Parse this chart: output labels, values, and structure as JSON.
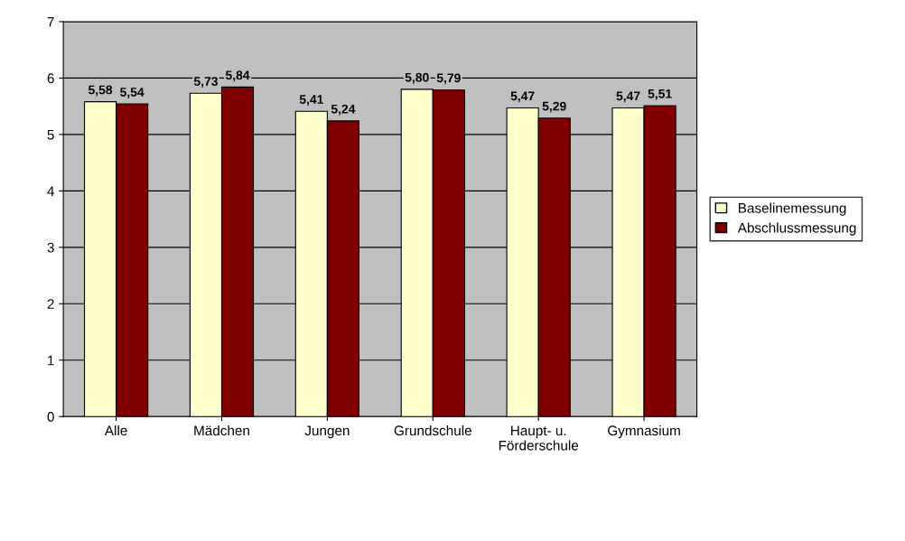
{
  "chart_data": {
    "type": "bar",
    "categories": [
      "Alle",
      "Mädchen",
      "Jungen",
      "Grundschule",
      "Haupt- u.\nFörderschule",
      "Gymnasium"
    ],
    "series": [
      {
        "name": "Baselinemessung",
        "color": "#ffffcc",
        "values": [
          5.58,
          5.73,
          5.41,
          5.8,
          5.47,
          5.47
        ],
        "value_labels": [
          "5,58",
          "5,73",
          "5,41",
          "5,80",
          "5,47",
          "5,47"
        ]
      },
      {
        "name": "Abschlussmessung",
        "color": "#800000",
        "values": [
          5.54,
          5.84,
          5.24,
          5.79,
          5.29,
          5.51
        ],
        "value_labels": [
          "5,54",
          "5,84",
          "5,24",
          "5,79",
          "5,29",
          "5,51"
        ]
      }
    ],
    "ylim": [
      0,
      7
    ],
    "yticks": [
      0,
      1,
      2,
      3,
      4,
      5,
      6,
      7
    ],
    "grid": "y",
    "legend": "right"
  }
}
